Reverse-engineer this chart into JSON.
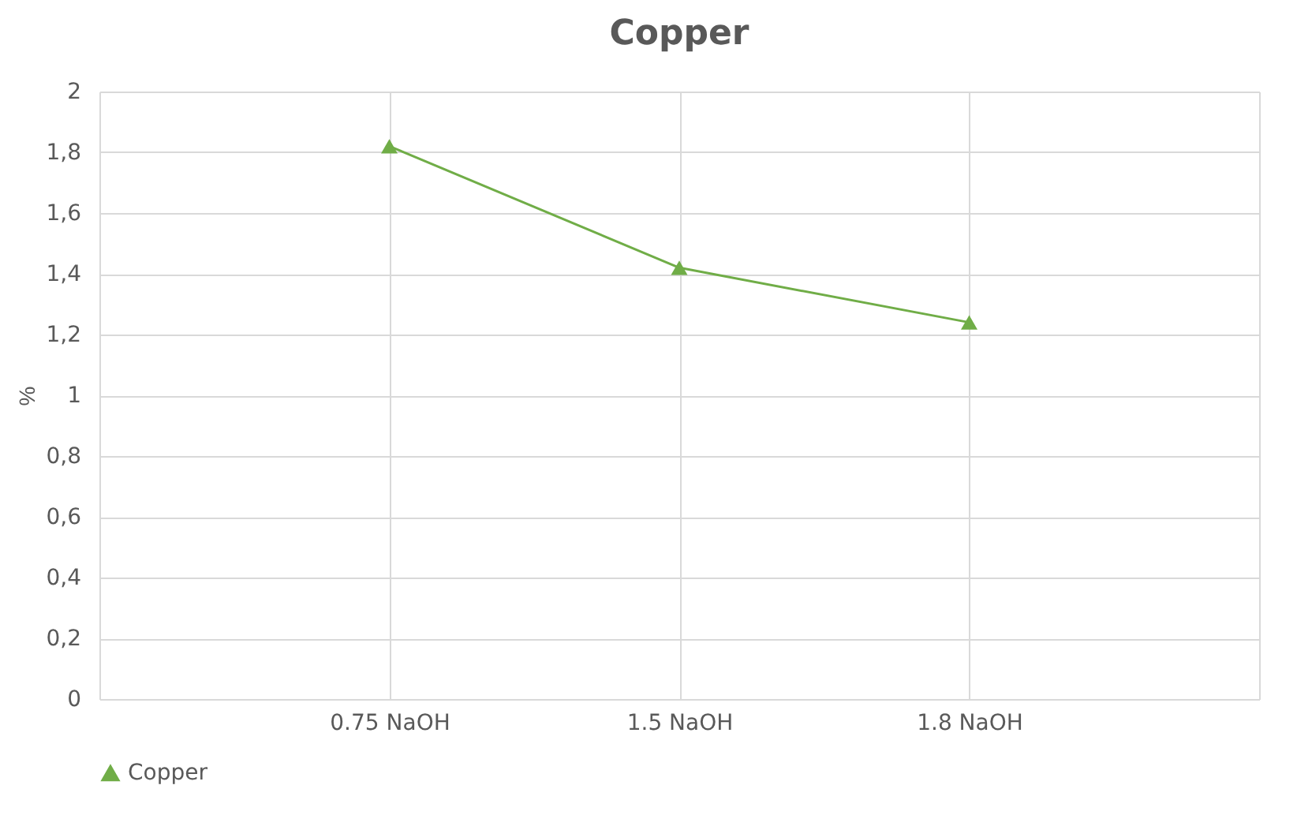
{
  "chart_data": {
    "type": "line",
    "title": "Copper",
    "ylabel": "%",
    "categories": [
      null,
      "0.75 NaOH",
      "1.5 NaOH",
      "1.8 NaOH",
      null
    ],
    "series": [
      {
        "name": "Copper",
        "color": "#70ad47",
        "values": [
          null,
          1.82,
          1.42,
          1.24,
          null
        ]
      }
    ],
    "ylim": [
      0,
      2
    ],
    "yticks": [
      0,
      {
        "value": 0.2,
        "label": "0,2"
      },
      {
        "value": 0.4,
        "label": "0,4"
      },
      {
        "value": 0.6,
        "label": "0,6"
      },
      {
        "value": 0.8,
        "label": "0,8"
      },
      1,
      {
        "value": 1.2,
        "label": "1,2"
      },
      {
        "value": 1.4,
        "label": "1,4"
      },
      {
        "value": 1.6,
        "label": "1,6"
      },
      {
        "value": 1.8,
        "label": "1,8"
      },
      2
    ],
    "grid": true,
    "legend": "bottom",
    "marker": "triangle",
    "line_style": "solid"
  }
}
